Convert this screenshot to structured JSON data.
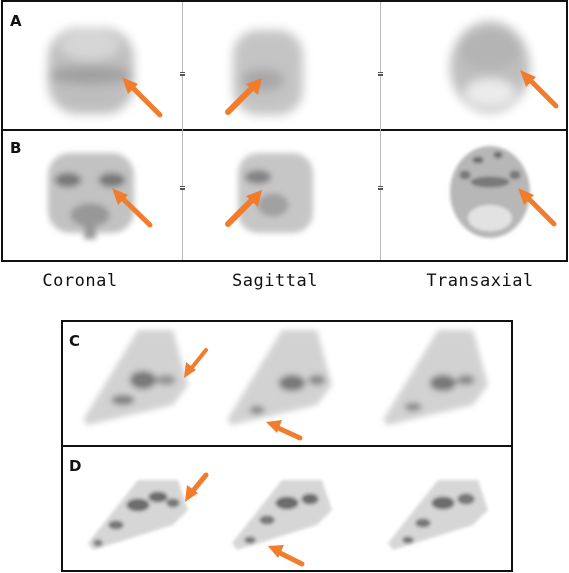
{
  "figure": {
    "panel_labels": {
      "a": "A",
      "b": "B",
      "c": "C",
      "d": "D"
    },
    "view_labels": {
      "coronal": "Coronal",
      "sagittal": "Sagittal",
      "transaxial": "Transaxial"
    },
    "arrow_color": "#f07c2c"
  }
}
